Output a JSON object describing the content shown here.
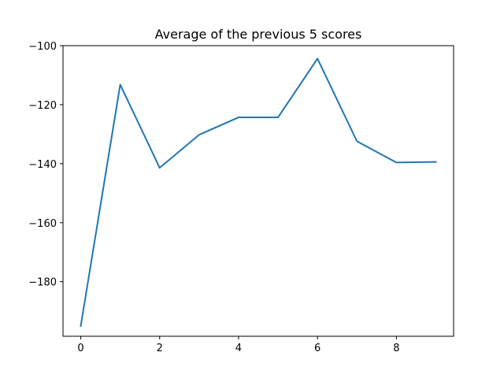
{
  "chart_data": {
    "type": "line",
    "title": "Average of the previous 5 scores",
    "xlabel": "",
    "ylabel": "",
    "x": [
      0,
      1,
      2,
      3,
      4,
      5,
      6,
      7,
      8,
      9
    ],
    "series": [
      {
        "values": [
          -195.0,
          -113.2,
          -141.4,
          -130.2,
          -124.3,
          -124.3,
          -104.4,
          -132.4,
          -139.6,
          -139.4
        ],
        "color": "#1f77b4"
      }
    ],
    "xlim": [
      -0.45,
      9.45
    ],
    "ylim": [
      -198.5,
      -100
    ],
    "xticks": [
      0,
      2,
      4,
      6,
      8
    ],
    "yticks": [
      -100,
      -120,
      -140,
      -160,
      -180
    ],
    "xtick_labels": [
      "0",
      "2",
      "4",
      "6",
      "8"
    ],
    "ytick_labels": [
      "−100",
      "−120",
      "−140",
      "−160",
      "−180"
    ],
    "grid": false,
    "legend": "none"
  }
}
